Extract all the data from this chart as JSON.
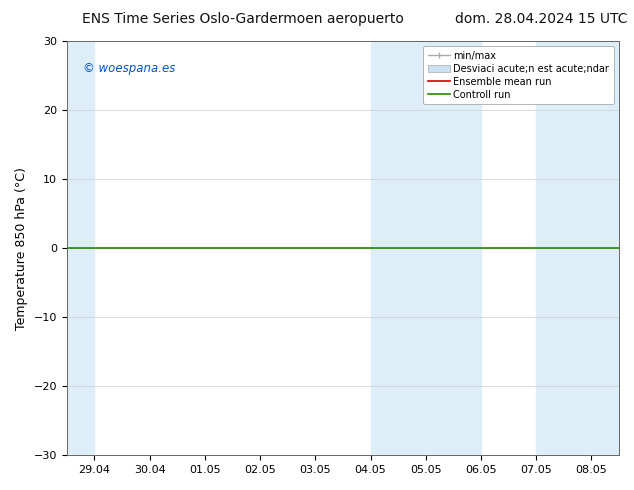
{
  "title_left": "ENS Time Series Oslo-Gardermoen aeropuerto",
  "title_right": "dom. 28.04.2024 15 UTC",
  "ylabel": "Temperature 850 hPa (°C)",
  "xlim_dates": [
    "29.04",
    "30.04",
    "01.05",
    "02.05",
    "03.05",
    "04.05",
    "05.05",
    "06.05",
    "07.05",
    "08.05"
  ],
  "ylim": [
    -30,
    30
  ],
  "yticks": [
    -30,
    -20,
    -10,
    0,
    10,
    20,
    30
  ],
  "watermark": "© woespana.es",
  "watermark_color": "#0055cc",
  "bg_color": "#ffffff",
  "plot_bg_color": "#ffffff",
  "band_color": "#ddeef8",
  "hline_y": 0.0,
  "hline_color": "#228800",
  "hline_lw": 1.2,
  "legend_label_minmax": "min/max",
  "legend_label_std": "Desviaci acute;n est acute;ndar",
  "legend_label_ens": "Ensemble mean run",
  "legend_label_ctrl": "Controll run",
  "legend_color_minmax": "#aaaaaa",
  "legend_color_std": "#cce0f0",
  "legend_color_ens": "#cc0000",
  "legend_color_ctrl": "#228800",
  "title_fontsize": 10,
  "tick_fontsize": 8,
  "ylabel_fontsize": 9
}
